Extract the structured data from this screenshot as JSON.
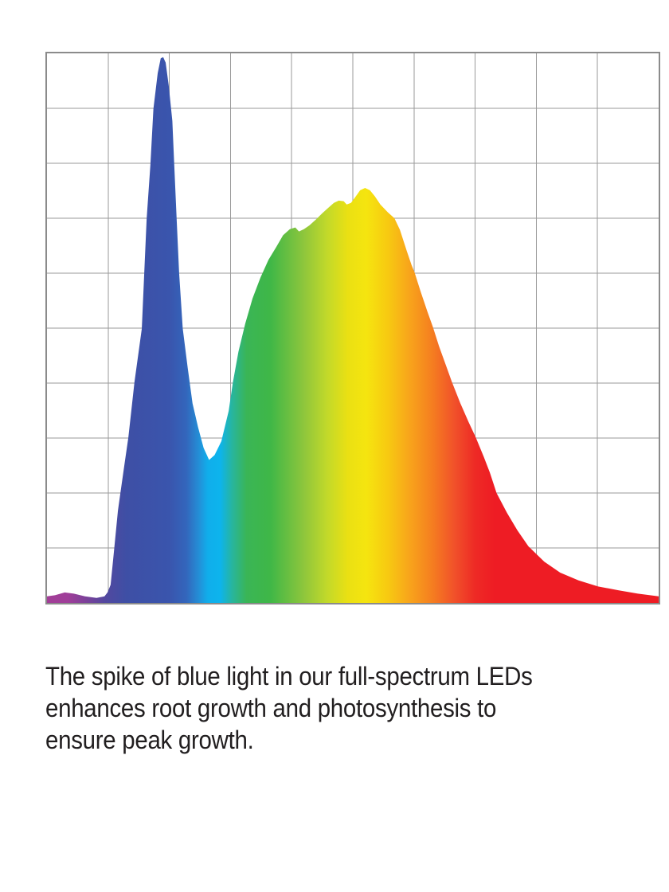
{
  "page": {
    "background": "#ffffff"
  },
  "caption": {
    "lines": [
      "The spike of blue light in our full-spectrum LEDs",
      "enhances root growth and photosynthesis to",
      "ensure peak growth."
    ],
    "color": "#211e1f"
  },
  "chart_data": {
    "type": "area",
    "title": "",
    "xlabel": "",
    "ylabel": "",
    "axis_labels_visible": false,
    "legend": "none",
    "description": "Spectral power distribution of a full-spectrum LED grow light. Axes are unlabeled; the plot is a 10x10 gridline square. X spans the visible color spectrum (violet through deep red, rendered as a horizontal rainbow gradient fill), Y is relative intensity 0-1. A narrow blue spike reaches ~99% intensity, dips to a ~26% valley in cyan, then a broad green-yellow-red hump peaks at ~76% before a long red tail.",
    "xlim": [
      0,
      1
    ],
    "ylim": [
      0,
      1
    ],
    "grid": {
      "columns": 10,
      "rows": 10,
      "line_color": "#9a9a9a",
      "border_color": "#8b8b8b"
    },
    "key_features": {
      "purple_bump": {
        "x": 0.029,
        "intensity": 0.019
      },
      "blue_spike_peak": {
        "x": 0.19,
        "intensity": 0.993
      },
      "valley": {
        "x": 0.265,
        "intensity": 0.26
      },
      "broad_peak": {
        "x": 0.52,
        "intensity": 0.755
      },
      "right_edge_intensity": 0.012
    },
    "points": [
      [
        0.0,
        0.012
      ],
      [
        0.013,
        0.014
      ],
      [
        0.029,
        0.019
      ],
      [
        0.044,
        0.017
      ],
      [
        0.062,
        0.012
      ],
      [
        0.081,
        0.009
      ],
      [
        0.094,
        0.012
      ],
      [
        0.099,
        0.019
      ],
      [
        0.104,
        0.033
      ],
      [
        0.109,
        0.088
      ],
      [
        0.116,
        0.168
      ],
      [
        0.12,
        0.2
      ],
      [
        0.127,
        0.255
      ],
      [
        0.133,
        0.301
      ],
      [
        0.143,
        0.402
      ],
      [
        0.155,
        0.499
      ],
      [
        0.159,
        0.601
      ],
      [
        0.163,
        0.699
      ],
      [
        0.169,
        0.797
      ],
      [
        0.174,
        0.899
      ],
      [
        0.181,
        0.964
      ],
      [
        0.186,
        0.991
      ],
      [
        0.19,
        0.993
      ],
      [
        0.194,
        0.983
      ],
      [
        0.199,
        0.942
      ],
      [
        0.205,
        0.877
      ],
      [
        0.208,
        0.797
      ],
      [
        0.212,
        0.699
      ],
      [
        0.216,
        0.601
      ],
      [
        0.222,
        0.499
      ],
      [
        0.23,
        0.428
      ],
      [
        0.238,
        0.363
      ],
      [
        0.247,
        0.32
      ],
      [
        0.256,
        0.282
      ],
      [
        0.265,
        0.26
      ],
      [
        0.274,
        0.269
      ],
      [
        0.285,
        0.294
      ],
      [
        0.297,
        0.349
      ],
      [
        0.304,
        0.402
      ],
      [
        0.313,
        0.457
      ],
      [
        0.324,
        0.508
      ],
      [
        0.336,
        0.554
      ],
      [
        0.349,
        0.592
      ],
      [
        0.362,
        0.624
      ],
      [
        0.375,
        0.648
      ],
      [
        0.386,
        0.669
      ],
      [
        0.397,
        0.68
      ],
      [
        0.406,
        0.683
      ],
      [
        0.412,
        0.676
      ],
      [
        0.42,
        0.68
      ],
      [
        0.429,
        0.687
      ],
      [
        0.44,
        0.698
      ],
      [
        0.45,
        0.709
      ],
      [
        0.46,
        0.719
      ],
      [
        0.469,
        0.728
      ],
      [
        0.477,
        0.732
      ],
      [
        0.485,
        0.731
      ],
      [
        0.49,
        0.725
      ],
      [
        0.497,
        0.728
      ],
      [
        0.505,
        0.74
      ],
      [
        0.512,
        0.751
      ],
      [
        0.52,
        0.755
      ],
      [
        0.528,
        0.751
      ],
      [
        0.536,
        0.74
      ],
      [
        0.545,
        0.725
      ],
      [
        0.557,
        0.711
      ],
      [
        0.568,
        0.7
      ],
      [
        0.577,
        0.679
      ],
      [
        0.588,
        0.641
      ],
      [
        0.596,
        0.615
      ],
      [
        0.601,
        0.601
      ],
      [
        0.611,
        0.566
      ],
      [
        0.622,
        0.53
      ],
      [
        0.631,
        0.502
      ],
      [
        0.641,
        0.467
      ],
      [
        0.652,
        0.433
      ],
      [
        0.662,
        0.402
      ],
      [
        0.676,
        0.363
      ],
      [
        0.689,
        0.33
      ],
      [
        0.701,
        0.301
      ],
      [
        0.714,
        0.266
      ],
      [
        0.724,
        0.237
      ],
      [
        0.735,
        0.2
      ],
      [
        0.752,
        0.164
      ],
      [
        0.769,
        0.132
      ],
      [
        0.787,
        0.103
      ],
      [
        0.813,
        0.075
      ],
      [
        0.839,
        0.055
      ],
      [
        0.869,
        0.041
      ],
      [
        0.901,
        0.03
      ],
      [
        0.934,
        0.023
      ],
      [
        0.966,
        0.017
      ],
      [
        1.0,
        0.012
      ]
    ],
    "gradient_stops": [
      {
        "offset": 0.0,
        "color": "#a23e97"
      },
      {
        "offset": 0.035,
        "color": "#9f3e99"
      },
      {
        "offset": 0.065,
        "color": "#7a4199"
      },
      {
        "offset": 0.095,
        "color": "#52489f"
      },
      {
        "offset": 0.13,
        "color": "#3e4fa5"
      },
      {
        "offset": 0.2,
        "color": "#3a55ad"
      },
      {
        "offset": 0.228,
        "color": "#3366bc"
      },
      {
        "offset": 0.25,
        "color": "#2292d9"
      },
      {
        "offset": 0.263,
        "color": "#10aeeb"
      },
      {
        "offset": 0.283,
        "color": "#0db4ed"
      },
      {
        "offset": 0.303,
        "color": "#28b59d"
      },
      {
        "offset": 0.326,
        "color": "#3ab556"
      },
      {
        "offset": 0.365,
        "color": "#3fb747"
      },
      {
        "offset": 0.42,
        "color": "#8ec63c"
      },
      {
        "offset": 0.458,
        "color": "#c2d92a"
      },
      {
        "offset": 0.492,
        "color": "#eae013"
      },
      {
        "offset": 0.522,
        "color": "#f5e50f"
      },
      {
        "offset": 0.557,
        "color": "#f7ca11"
      },
      {
        "offset": 0.592,
        "color": "#f8a51b"
      },
      {
        "offset": 0.63,
        "color": "#f57e20"
      },
      {
        "offset": 0.666,
        "color": "#f1512a"
      },
      {
        "offset": 0.7,
        "color": "#ee2a25"
      },
      {
        "offset": 0.732,
        "color": "#ee1c24"
      },
      {
        "offset": 1.0,
        "color": "#ee1c24"
      }
    ]
  }
}
